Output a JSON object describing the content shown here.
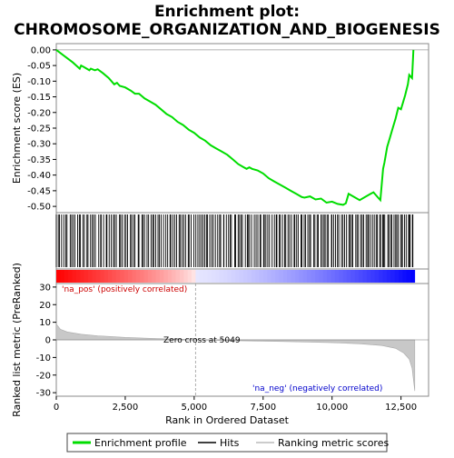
{
  "chart_data": {
    "type": "line",
    "title": "Enrichment plot:",
    "subtitle": "CHROMOSOME_ORGANIZATION_AND_BIOGENESIS",
    "panels": {
      "es": {
        "ylabel": "Enrichment score (ES)",
        "ylim": [
          -0.52,
          0.02
        ],
        "yticks": [
          "0.00",
          "-0.05",
          "-0.10",
          "-0.15",
          "-0.20",
          "-0.25",
          "-0.30",
          "-0.35",
          "-0.40",
          "-0.45",
          "-0.50"
        ],
        "series_name": "Enrichment profile",
        "color": "#00dd00",
        "points": [
          [
            0,
            0.0
          ],
          [
            300,
            -0.02
          ],
          [
            600,
            -0.04
          ],
          [
            850,
            -0.06
          ],
          [
            900,
            -0.05
          ],
          [
            1000,
            -0.055
          ],
          [
            1200,
            -0.065
          ],
          [
            1250,
            -0.06
          ],
          [
            1400,
            -0.065
          ],
          [
            1500,
            -0.062
          ],
          [
            1700,
            -0.075
          ],
          [
            1900,
            -0.09
          ],
          [
            2100,
            -0.11
          ],
          [
            2200,
            -0.105
          ],
          [
            2300,
            -0.115
          ],
          [
            2500,
            -0.12
          ],
          [
            2700,
            -0.13
          ],
          [
            2850,
            -0.14
          ],
          [
            3000,
            -0.14
          ],
          [
            3200,
            -0.155
          ],
          [
            3400,
            -0.165
          ],
          [
            3600,
            -0.175
          ],
          [
            3800,
            -0.19
          ],
          [
            4000,
            -0.205
          ],
          [
            4200,
            -0.215
          ],
          [
            4400,
            -0.23
          ],
          [
            4600,
            -0.24
          ],
          [
            4800,
            -0.255
          ],
          [
            5000,
            -0.265
          ],
          [
            5200,
            -0.28
          ],
          [
            5400,
            -0.29
          ],
          [
            5600,
            -0.305
          ],
          [
            5800,
            -0.315
          ],
          [
            6000,
            -0.325
          ],
          [
            6200,
            -0.335
          ],
          [
            6400,
            -0.35
          ],
          [
            6600,
            -0.365
          ],
          [
            6800,
            -0.375
          ],
          [
            6900,
            -0.38
          ],
          [
            7000,
            -0.375
          ],
          [
            7100,
            -0.38
          ],
          [
            7300,
            -0.385
          ],
          [
            7500,
            -0.395
          ],
          [
            7700,
            -0.41
          ],
          [
            7900,
            -0.42
          ],
          [
            8100,
            -0.43
          ],
          [
            8300,
            -0.44
          ],
          [
            8500,
            -0.45
          ],
          [
            8700,
            -0.46
          ],
          [
            8900,
            -0.47
          ],
          [
            9000,
            -0.472
          ],
          [
            9200,
            -0.468
          ],
          [
            9400,
            -0.478
          ],
          [
            9600,
            -0.475
          ],
          [
            9800,
            -0.488
          ],
          [
            10000,
            -0.485
          ],
          [
            10200,
            -0.492
          ],
          [
            10400,
            -0.495
          ],
          [
            10500,
            -0.49
          ],
          [
            10600,
            -0.46
          ],
          [
            10800,
            -0.47
          ],
          [
            11000,
            -0.48
          ],
          [
            11200,
            -0.47
          ],
          [
            11400,
            -0.46
          ],
          [
            11500,
            -0.455
          ],
          [
            11700,
            -0.475
          ],
          [
            11750,
            -0.48
          ],
          [
            11800,
            -0.43
          ],
          [
            11850,
            -0.38
          ],
          [
            11900,
            -0.36
          ],
          [
            12000,
            -0.31
          ],
          [
            12100,
            -0.28
          ],
          [
            12200,
            -0.25
          ],
          [
            12300,
            -0.22
          ],
          [
            12400,
            -0.185
          ],
          [
            12500,
            -0.19
          ],
          [
            12650,
            -0.145
          ],
          [
            12750,
            -0.11
          ],
          [
            12800,
            -0.08
          ],
          [
            12900,
            -0.09
          ],
          [
            12950,
            0.0
          ]
        ]
      },
      "hits": {
        "count": 200
      },
      "metric": {
        "ylabel": "Ranked list metric (PreRanked)",
        "ylim": [
          -32,
          32
        ],
        "yticks": [
          "30",
          "20",
          "10",
          "0",
          "-10",
          "-20",
          "-30"
        ],
        "zero_cross_label": "Zero cross at 5049",
        "zero_cross": 5049,
        "pos_label": "'na_pos' (positively correlated)",
        "neg_label": "'na_neg' (negatively correlated)",
        "profile": [
          [
            0,
            9.0
          ],
          [
            150,
            6.0
          ],
          [
            400,
            4.5
          ],
          [
            900,
            3.2
          ],
          [
            1500,
            2.3
          ],
          [
            2500,
            1.4
          ],
          [
            3500,
            0.8
          ],
          [
            4500,
            0.3
          ],
          [
            5049,
            0.0
          ],
          [
            6000,
            -0.3
          ],
          [
            7000,
            -0.6
          ],
          [
            8000,
            -0.9
          ],
          [
            9000,
            -1.2
          ],
          [
            10000,
            -1.6
          ],
          [
            11000,
            -2.2
          ],
          [
            11800,
            -3.2
          ],
          [
            12300,
            -4.8
          ],
          [
            12600,
            -7.5
          ],
          [
            12800,
            -11.0
          ],
          [
            12900,
            -16.0
          ],
          [
            13000,
            -29.0
          ]
        ]
      }
    },
    "xlabel": "Rank in Ordered Dataset",
    "xlim": [
      0,
      13500
    ],
    "xticks": [
      "0",
      "2,500",
      "5,000",
      "7,500",
      "10,000",
      "12,500"
    ],
    "legend": {
      "placement": "bottom",
      "items": [
        "Enrichment profile",
        "Hits",
        "Ranking metric scores"
      ]
    }
  }
}
